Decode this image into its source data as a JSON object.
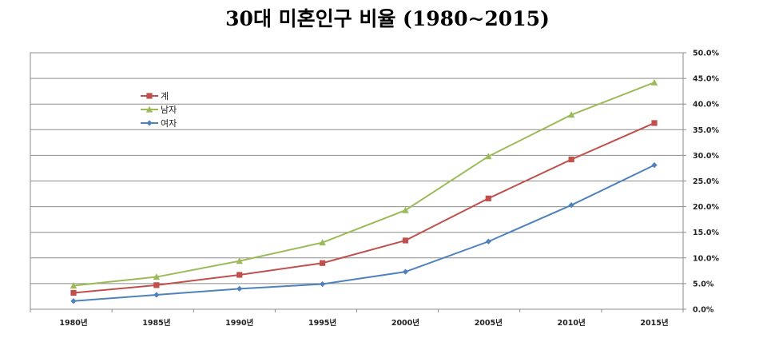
{
  "chart_data": {
    "type": "line",
    "title": "30대 미혼인구 비율 (1980∼2015)",
    "categories": [
      "1980년",
      "1985년",
      "1990년",
      "1995년",
      "2000년",
      "2005년",
      "2010년",
      "2015년"
    ],
    "series": [
      {
        "name": "계",
        "color": "#c0504d",
        "marker": "square",
        "values": [
          3.2,
          4.7,
          6.7,
          9.0,
          13.4,
          21.6,
          29.2,
          36.3
        ]
      },
      {
        "name": "남자",
        "color": "#9bbb59",
        "marker": "triangle",
        "values": [
          4.6,
          6.3,
          9.4,
          13.0,
          19.3,
          29.8,
          37.9,
          44.2
        ]
      },
      {
        "name": "여자",
        "color": "#4f81bd",
        "marker": "diamond",
        "values": [
          1.6,
          2.8,
          4.0,
          4.9,
          7.3,
          13.2,
          20.3,
          28.1
        ]
      }
    ],
    "ylim": [
      0,
      50
    ],
    "yticks": [
      "0.0%",
      "5.0%",
      "10.0%",
      "15.0%",
      "20.0%",
      "25.0%",
      "30.0%",
      "35.0%",
      "40.0%",
      "45.0%",
      "50.0%"
    ],
    "y_axis_position": "right",
    "grid": true,
    "legend_position": "top-left"
  }
}
